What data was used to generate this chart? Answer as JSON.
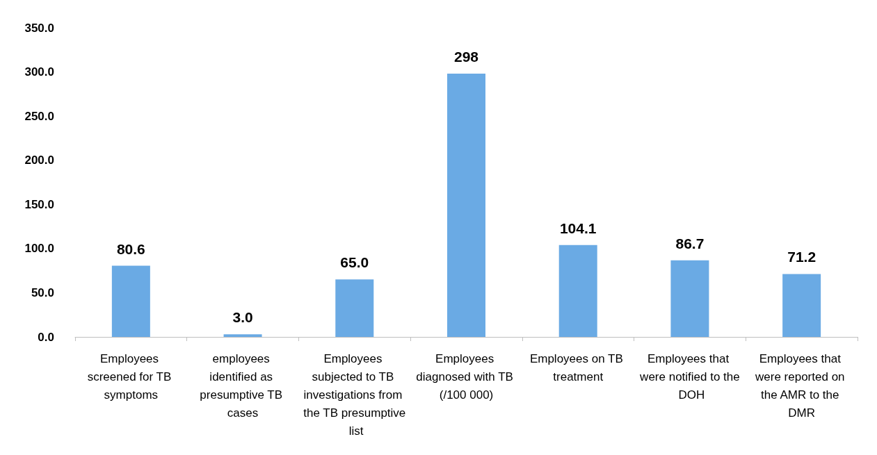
{
  "chart_data": {
    "type": "bar",
    "categories": [
      "Employees screened for TB symptoms",
      "employees identified as presumptive TB cases",
      "Employees subjected to TB investigations from the TB presumptive list",
      "Employees diagnosed with TB (/100 000)",
      "Employees on TB treatment",
      "Employees that were notified to the DOH",
      "Employees that were reported on the AMR to the DMR"
    ],
    "values": [
      80.6,
      3.0,
      65.0,
      298,
      104.1,
      86.7,
      71.2
    ],
    "value_labels": [
      "80.6",
      "3.0",
      "65.0",
      "298",
      "104.1",
      "86.7",
      "71.2"
    ],
    "color": "#6aaae4",
    "ylim": [
      0,
      350
    ],
    "yticks": [
      {
        "value": 0,
        "label": "0.0"
      },
      {
        "value": 50,
        "label": "50.0"
      },
      {
        "value": 100,
        "label": "100.0"
      },
      {
        "value": 150,
        "label": "150.0"
      },
      {
        "value": 200,
        "label": "200.0"
      },
      {
        "value": 250,
        "label": "250.0"
      },
      {
        "value": 300,
        "label": "300.0"
      },
      {
        "value": 350,
        "label": "350.0"
      }
    ],
    "grid": false
  }
}
